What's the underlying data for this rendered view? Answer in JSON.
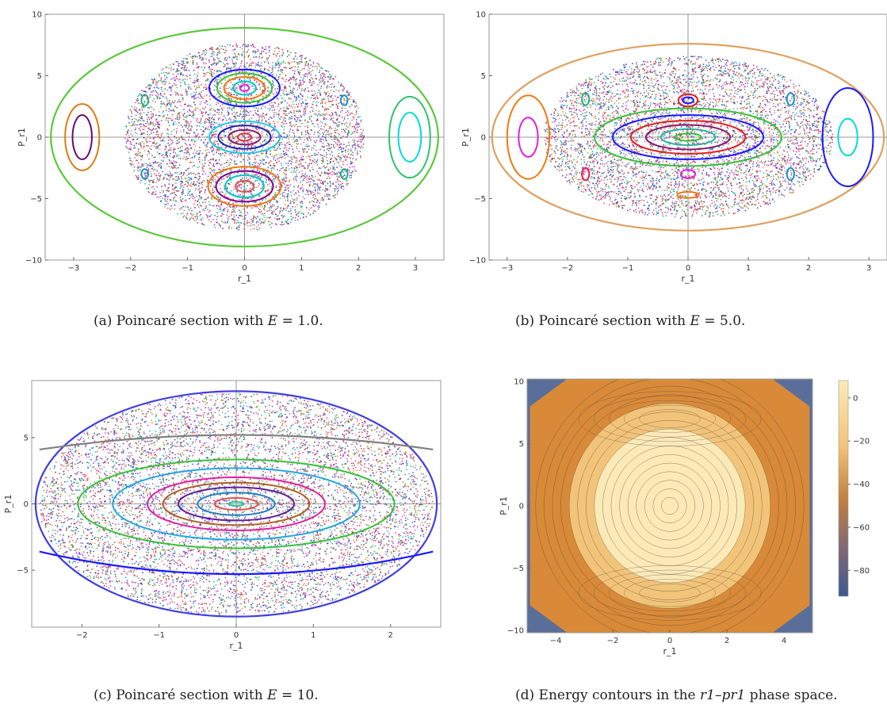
{
  "chart_data": [
    {
      "id": "a",
      "type": "scatter",
      "title": "",
      "xlabel": "r_1",
      "ylabel": "P_r1",
      "xlim": [
        -3.5,
        3.5
      ],
      "ylim": [
        -10,
        10
      ],
      "xticks": [
        -3,
        -2,
        -1,
        0,
        1,
        2,
        3
      ],
      "yticks": [
        -10,
        -5,
        0,
        5,
        10
      ],
      "grid": false,
      "caption_prefix": "(a) Poincaré section with ",
      "caption_math": "E",
      "caption_suffix": " = 1.0.",
      "boundary": {
        "a": 3.4,
        "b": 8.9,
        "color": "#5ac83c"
      },
      "chaos": {
        "count": 5000,
        "rx": 2.1,
        "ry": 7.6
      },
      "orbits": [
        {
          "cx": 0,
          "cy": 4,
          "rx": 0.62,
          "ry": 1.5,
          "color": "#1a1aff"
        },
        {
          "cx": 0,
          "cy": 4,
          "rx": 0.48,
          "ry": 1.2,
          "color": "#3ac13a"
        },
        {
          "cx": 0,
          "cy": 4,
          "rx": 0.36,
          "ry": 0.9,
          "color": "#ee7a10"
        },
        {
          "cx": 0,
          "cy": 4,
          "rx": 0.2,
          "ry": 0.55,
          "color": "#00c8c8"
        },
        {
          "cx": 0,
          "cy": 4,
          "rx": 0.08,
          "ry": 0.25,
          "color": "#e020e0"
        },
        {
          "cx": 0,
          "cy": 0,
          "rx": 0.62,
          "ry": 1.3,
          "color": "#22c8e0"
        },
        {
          "cx": 0,
          "cy": 0,
          "rx": 0.46,
          "ry": 0.95,
          "color": "#2020b0"
        },
        {
          "cx": 0,
          "cy": 0,
          "rx": 0.28,
          "ry": 0.6,
          "color": "#8b1a6b"
        },
        {
          "cx": 0,
          "cy": 0,
          "rx": 0.12,
          "ry": 0.3,
          "color": "#e03030"
        },
        {
          "cx": 0,
          "cy": -4,
          "rx": 0.64,
          "ry": 1.6,
          "color": "#ee7a10"
        },
        {
          "cx": 0,
          "cy": -4,
          "rx": 0.5,
          "ry": 1.25,
          "color": "#8b008b"
        },
        {
          "cx": 0,
          "cy": -4,
          "rx": 0.34,
          "ry": 0.9,
          "color": "#00c8c8"
        },
        {
          "cx": 0,
          "cy": -4,
          "rx": 0.16,
          "ry": 0.45,
          "color": "#e05050"
        },
        {
          "cx": -2.85,
          "cy": 0,
          "rx": 0.3,
          "ry": 2.7,
          "color": "#e07a10"
        },
        {
          "cx": -2.85,
          "cy": 0,
          "rx": 0.17,
          "ry": 1.8,
          "color": "#6b0a6b"
        },
        {
          "cx": 2.9,
          "cy": 0,
          "rx": 0.36,
          "ry": 3.3,
          "color": "#2fc36a"
        },
        {
          "cx": 2.9,
          "cy": 0,
          "rx": 0.2,
          "ry": 2.0,
          "color": "#00dcdc"
        },
        {
          "cx": -1.75,
          "cy": 3.0,
          "rx": 0.06,
          "ry": 0.45,
          "color": "#20b080"
        },
        {
          "cx": -1.75,
          "cy": -3.0,
          "rx": 0.06,
          "ry": 0.4,
          "color": "#2090c0"
        },
        {
          "cx": 1.75,
          "cy": 3.0,
          "rx": 0.06,
          "ry": 0.4,
          "color": "#2090c0"
        },
        {
          "cx": 1.75,
          "cy": -3.0,
          "rx": 0.06,
          "ry": 0.4,
          "color": "#20b080"
        }
      ]
    },
    {
      "id": "b",
      "type": "scatter",
      "title": "",
      "xlabel": "r_1",
      "ylabel": "P_r1",
      "xlim": [
        -3.3,
        3.3
      ],
      "ylim": [
        -10,
        10
      ],
      "xticks": [
        -3,
        -2,
        -1,
        0,
        1,
        2,
        3
      ],
      "yticks": [
        -10,
        -5,
        0,
        5,
        10
      ],
      "grid": false,
      "caption_prefix": "(b) Poincaré section with ",
      "caption_math": "E",
      "caption_suffix": " = 5.0.",
      "boundary": {
        "a": 3.25,
        "b": 7.6,
        "color": "#e0a060"
      },
      "chaos": {
        "count": 5000,
        "rx": 2.4,
        "ry": 6.6
      },
      "orbits": [
        {
          "cx": 0,
          "cy": 0,
          "rx": 1.55,
          "ry": 2.35,
          "color": "#3ac13a"
        },
        {
          "cx": 0,
          "cy": 0,
          "rx": 1.25,
          "ry": 1.8,
          "color": "#1a1aff"
        },
        {
          "cx": 0,
          "cy": 0,
          "rx": 0.95,
          "ry": 1.35,
          "color": "#e02020"
        },
        {
          "cx": 0,
          "cy": 0,
          "rx": 0.7,
          "ry": 1.0,
          "color": "#8b1a6b"
        },
        {
          "cx": 0,
          "cy": 0,
          "rx": 0.45,
          "ry": 0.65,
          "color": "#30b0a0"
        },
        {
          "cx": 0,
          "cy": 0,
          "rx": 0.22,
          "ry": 0.3,
          "color": "#30c030"
        },
        {
          "cx": 0,
          "cy": 3.0,
          "rx": 0.16,
          "ry": 0.5,
          "color": "#e02020"
        },
        {
          "cx": 0,
          "cy": 3.0,
          "rx": 0.09,
          "ry": 0.25,
          "color": "#1a1aff"
        },
        {
          "cx": 0,
          "cy": -3.0,
          "rx": 0.12,
          "ry": 0.35,
          "color": "#e020e0"
        },
        {
          "cx": 0,
          "cy": -4.7,
          "rx": 0.18,
          "ry": 0.25,
          "color": "#ee7a10"
        },
        {
          "cx": -2.65,
          "cy": 0,
          "rx": 0.35,
          "ry": 3.4,
          "color": "#ee7a10"
        },
        {
          "cx": -2.65,
          "cy": 0,
          "rx": 0.16,
          "ry": 1.6,
          "color": "#e020e0"
        },
        {
          "cx": 2.65,
          "cy": 0,
          "rx": 0.42,
          "ry": 4.0,
          "color": "#1a1aff"
        },
        {
          "cx": 2.65,
          "cy": 0,
          "rx": 0.16,
          "ry": 1.5,
          "color": "#00dcdc"
        },
        {
          "cx": 1.7,
          "cy": 3.1,
          "rx": 0.06,
          "ry": 0.5,
          "color": "#2090c0"
        },
        {
          "cx": 1.7,
          "cy": -3.0,
          "rx": 0.06,
          "ry": 0.5,
          "color": "#2090c0"
        },
        {
          "cx": -1.7,
          "cy": 3.1,
          "rx": 0.06,
          "ry": 0.5,
          "color": "#20b080"
        },
        {
          "cx": -1.7,
          "cy": -3.0,
          "rx": 0.06,
          "ry": 0.5,
          "color": "#e02050"
        }
      ]
    },
    {
      "id": "c",
      "type": "scatter",
      "title": "",
      "xlabel": "r_1",
      "ylabel": "P_r1",
      "xlim": [
        -2.65,
        2.65
      ],
      "ylim": [
        -9.3,
        9.3
      ],
      "xticks": [
        -2,
        -1,
        0,
        1,
        2
      ],
      "yticks": [
        -5,
        0,
        5
      ],
      "grid": false,
      "caption_prefix": "(c) Poincaré section with ",
      "caption_math": "E",
      "caption_suffix": " = 10.",
      "boundary": {
        "a": 2.6,
        "b": 8.5,
        "color": "#4040e0"
      },
      "chaos": {
        "count": 7000,
        "rx": 2.55,
        "ry": 8.4
      },
      "orbits": [
        {
          "cx": 0,
          "cy": 0,
          "rx": 2.05,
          "ry": 3.35,
          "color": "#3ac13a"
        },
        {
          "cx": 0,
          "cy": 0,
          "rx": 1.6,
          "ry": 2.7,
          "color": "#20a8e0"
        },
        {
          "cx": 0,
          "cy": 0,
          "rx": 1.15,
          "ry": 2.0,
          "color": "#e020a0"
        },
        {
          "cx": 0,
          "cy": 0,
          "rx": 0.95,
          "ry": 1.6,
          "color": "#b06020"
        },
        {
          "cx": 0,
          "cy": 0,
          "rx": 0.75,
          "ry": 1.25,
          "color": "#6020a0"
        },
        {
          "cx": 0,
          "cy": 0,
          "rx": 0.5,
          "ry": 0.85,
          "color": "#2080c0"
        },
        {
          "cx": 0,
          "cy": 0,
          "rx": 0.28,
          "ry": 0.45,
          "color": "#e05050"
        },
        {
          "cx": 0,
          "cy": 0,
          "rx": 0.1,
          "ry": 0.15,
          "color": "#30c0a0"
        }
      ],
      "arcs": [
        {
          "y0": 5.2,
          "y1": 4.1,
          "color": "#808080"
        },
        {
          "y0": -5.3,
          "y1": -3.6,
          "color": "#1a1aff"
        }
      ]
    },
    {
      "id": "d",
      "type": "heatmap",
      "title": "",
      "xlabel": "r_1",
      "ylabel": "P_r1",
      "xlim": [
        -5,
        5
      ],
      "ylim": [
        -10.2,
        10.2
      ],
      "xticks": [
        -4,
        -2,
        0,
        2,
        4
      ],
      "yticks": [
        -10,
        -5,
        0,
        5,
        10
      ],
      "colorbar_ticks": [
        0,
        -20,
        -40,
        -60,
        -80
      ],
      "colorbar_range": [
        -92,
        8
      ],
      "colors": {
        "light": "#fbeab8",
        "mid": "#f2c479",
        "dark": "#d88a38",
        "low": "#5a6e9a"
      },
      "caption_prefix": "(d) Energy contours in the ",
      "caption_math": "r1–pr1",
      "caption_suffix": " phase space."
    }
  ]
}
